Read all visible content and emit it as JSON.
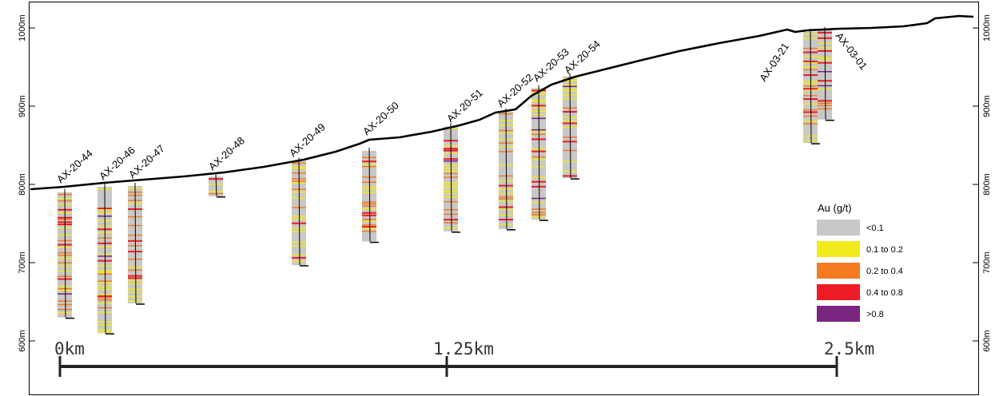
{
  "elevation_ticks": [
    {
      "label": "1000m",
      "value": 1000
    },
    {
      "label": "900m",
      "value": 900
    },
    {
      "label": "800m",
      "value": 800
    },
    {
      "label": "700m",
      "value": 700
    },
    {
      "label": "600m",
      "value": 600
    }
  ],
  "scale_bar": {
    "labels": [
      "0km",
      "1.25km",
      "2.5km"
    ]
  },
  "legend": {
    "title": "Au (g/t)",
    "items": [
      {
        "label": "<0.1",
        "color": "#c8c8c8"
      },
      {
        "label": "0.1 to 0.2",
        "color": "#f2ea1c"
      },
      {
        "label": "0.2 to 0.4",
        "color": "#f47b20"
      },
      {
        "label": "0.4 to 0.8",
        "color": "#ed1c24"
      },
      {
        "label": ">0.8",
        "color": "#7b2581"
      }
    ]
  },
  "drill_holes": [
    {
      "name": "AX-20-44",
      "top_elev": 790,
      "bottom_elev": 630,
      "angle": 0
    },
    {
      "name": "AX-20-46",
      "top_elev": 797,
      "bottom_elev": 610,
      "angle": 0
    },
    {
      "name": "AX-20-47",
      "top_elev": 798,
      "bottom_elev": 648,
      "angle": 0
    },
    {
      "name": "AX-20-48",
      "top_elev": 810,
      "bottom_elev": 785,
      "angle": 0
    },
    {
      "name": "AX-20-49",
      "top_elev": 830,
      "bottom_elev": 697,
      "angle": 0
    },
    {
      "name": "AX-20-50",
      "top_elev": 843,
      "bottom_elev": 727,
      "angle": 0
    },
    {
      "name": "AX-20-51",
      "top_elev": 874,
      "bottom_elev": 740,
      "angle": 0
    },
    {
      "name": "AX-20-52",
      "top_elev": 893,
      "bottom_elev": 743,
      "angle": 0
    },
    {
      "name": "AX-20-53",
      "top_elev": 923,
      "bottom_elev": 755,
      "angle": 0
    },
    {
      "name": "AX-20-54",
      "top_elev": 938,
      "bottom_elev": 808,
      "angle": 0
    },
    {
      "name": "AX-03-21",
      "top_elev": 995,
      "bottom_elev": 853,
      "angle": 0
    },
    {
      "name": "AX-03-01",
      "top_elev": 997,
      "bottom_elev": 883,
      "angle": 0
    }
  ]
}
